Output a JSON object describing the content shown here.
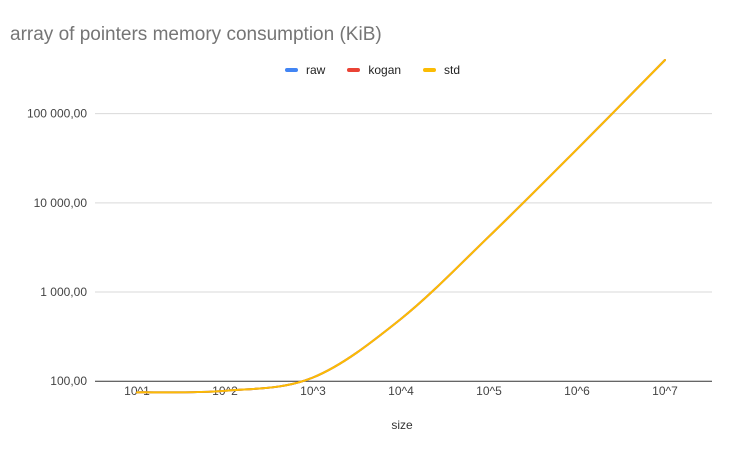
{
  "chart_data": {
    "type": "line",
    "title": "array of pointers memory consumption (KiB)",
    "xlabel": "size",
    "ylabel": "",
    "x_scale": "log",
    "y_scale": "log",
    "categories": [
      "10^1",
      "10^2",
      "10^3",
      "10^4",
      "10^5",
      "10^6",
      "10^7"
    ],
    "yticks": [
      100,
      1000,
      10000,
      100000
    ],
    "ytick_labels": [
      "100,00",
      "1 000,00",
      "10 000,00",
      "100 000,00"
    ],
    "ylim": [
      70,
      400000
    ],
    "grid": true,
    "legend_position": "top",
    "series": [
      {
        "name": "raw",
        "color": "#4285F4",
        "values": [
          75,
          78,
          110,
          500,
          4200,
          40000,
          400000
        ]
      },
      {
        "name": "kogan",
        "color": "#EA4335",
        "values": [
          75,
          78,
          110,
          500,
          4200,
          40000,
          400000
        ]
      },
      {
        "name": "std",
        "color": "#FBBC04",
        "values": [
          75,
          78,
          110,
          500,
          4200,
          40000,
          400000
        ]
      }
    ]
  }
}
